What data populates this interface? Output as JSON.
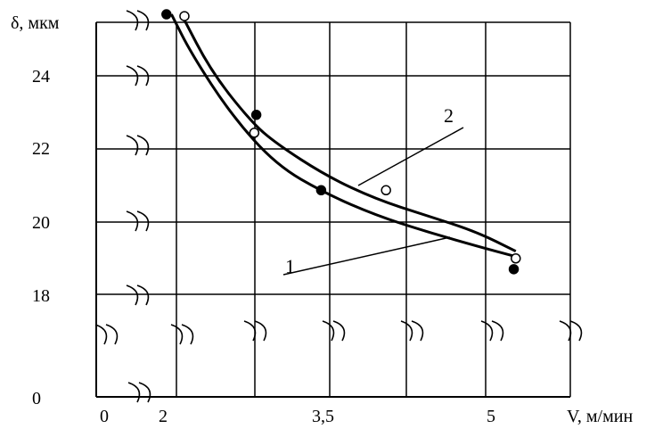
{
  "chart_data": {
    "type": "line",
    "ylabel": "δ, мкм",
    "xlabel": "V, м/мин",
    "x_tick_labels": [
      "0",
      "2",
      "3,5",
      "5"
    ],
    "y_tick_labels": [
      "0",
      "18",
      "20",
      "22",
      "24"
    ],
    "grid": true,
    "axis_breaks": true,
    "series": [
      {
        "name": "1",
        "curve": [
          [
            1.95,
            25.8
          ],
          [
            2.15,
            24.7
          ],
          [
            2.55,
            23.0
          ],
          [
            3.0,
            21.6
          ],
          [
            3.5,
            20.8
          ],
          [
            4.0,
            20.2
          ],
          [
            4.5,
            19.75
          ],
          [
            5.0,
            19.35
          ],
          [
            5.4,
            19.05
          ]
        ],
        "markers": "filled",
        "points": [
          [
            1.9,
            25.8
          ],
          [
            2.8,
            23.0
          ],
          [
            3.45,
            20.9
          ],
          [
            5.38,
            18.7
          ]
        ]
      },
      {
        "name": "2",
        "curve": [
          [
            2.05,
            25.8
          ],
          [
            2.35,
            24.2
          ],
          [
            2.75,
            22.8
          ],
          [
            3.0,
            22.2
          ],
          [
            3.5,
            21.3
          ],
          [
            4.0,
            20.65
          ],
          [
            4.5,
            20.2
          ],
          [
            5.0,
            19.75
          ],
          [
            5.4,
            19.2
          ]
        ],
        "markers": "open",
        "points": [
          [
            2.08,
            25.75
          ],
          [
            2.78,
            22.5
          ],
          [
            4.1,
            20.9
          ],
          [
            5.4,
            19.0
          ]
        ]
      }
    ]
  }
}
